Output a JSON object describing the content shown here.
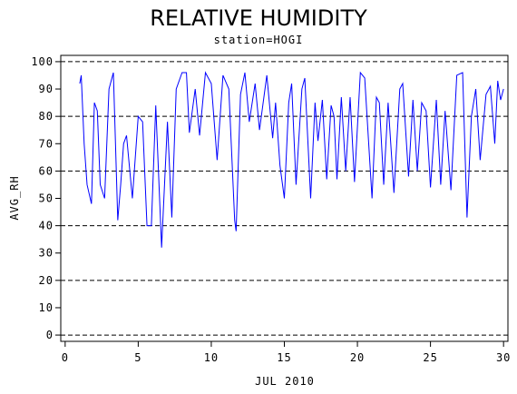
{
  "chart_data": {
    "type": "line",
    "title": "RELATIVE HUMIDITY",
    "subtitle": "station=HOGI",
    "x_label": "JUL 2010",
    "y_label": "AVG_RH",
    "xlim": [
      -0.3,
      30.3
    ],
    "ylim": [
      -2.3,
      102.3
    ],
    "xticks": [
      0,
      5,
      10,
      15,
      20,
      25,
      30
    ],
    "yticks": [
      0,
      10,
      20,
      30,
      40,
      50,
      60,
      70,
      80,
      90,
      100
    ],
    "ygrid": [
      0,
      20,
      40,
      60,
      80,
      100
    ],
    "series": [
      {
        "color": "#0000ff",
        "x": [
          1.0,
          1.1,
          1.3,
          1.5,
          1.8,
          2.0,
          2.2,
          2.4,
          2.7,
          3.0,
          3.3,
          3.6,
          3.8,
          4.0,
          4.2,
          4.6,
          5.0,
          5.3,
          5.6,
          5.9,
          6.2,
          6.6,
          7.0,
          7.3,
          7.6,
          8.0,
          8.3,
          8.5,
          8.9,
          9.2,
          9.6,
          10.0,
          10.4,
          10.8,
          11.2,
          11.6,
          11.7,
          12.0,
          12.3,
          12.6,
          13.0,
          13.3,
          13.8,
          14.2,
          14.4,
          14.7,
          15.0,
          15.3,
          15.5,
          15.8,
          16.2,
          16.4,
          16.8,
          17.1,
          17.3,
          17.6,
          17.9,
          18.2,
          18.4,
          18.6,
          18.9,
          19.2,
          19.5,
          19.8,
          20.2,
          20.5,
          21.0,
          21.3,
          21.5,
          21.8,
          22.1,
          22.5,
          22.9,
          23.1,
          23.5,
          23.8,
          24.1,
          24.4,
          24.7,
          25.0,
          25.4,
          25.7,
          26.0,
          26.4,
          26.8,
          27.2,
          27.5,
          27.8,
          28.1,
          28.4,
          28.8,
          29.1,
          29.4,
          29.6,
          29.8,
          30.0
        ],
        "values": [
          92,
          95,
          70,
          55,
          48,
          85,
          82,
          55,
          50,
          90,
          96,
          42,
          55,
          70,
          73,
          50,
          80,
          78,
          40,
          40,
          84,
          32,
          78,
          43,
          90,
          96,
          96,
          74,
          90,
          73,
          96,
          92,
          64,
          95,
          90,
          42,
          38,
          88,
          96,
          78,
          92,
          75,
          95,
          72,
          85,
          62,
          50,
          85,
          92,
          55,
          90,
          94,
          50,
          85,
          71,
          86,
          57,
          84,
          80,
          57,
          87,
          60,
          87,
          56,
          96,
          94,
          50,
          87,
          85,
          55,
          85,
          52,
          90,
          92,
          58,
          86,
          60,
          85,
          82,
          54,
          86,
          55,
          82,
          53,
          95,
          96,
          43,
          80,
          90,
          64,
          88,
          91,
          70,
          93,
          86,
          90
        ]
      }
    ]
  }
}
